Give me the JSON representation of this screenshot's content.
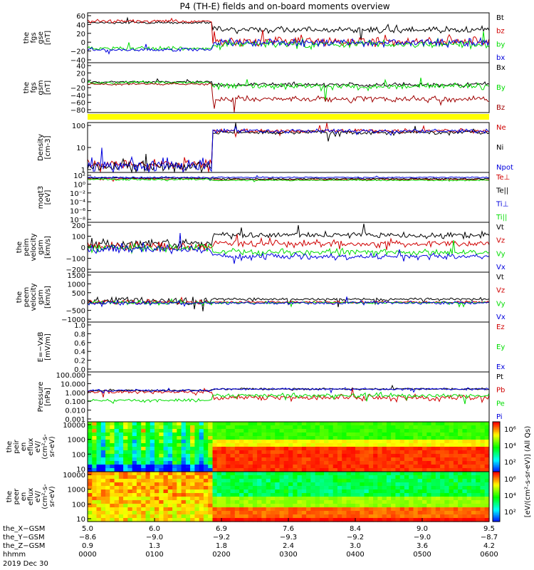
{
  "chart_data": {
    "type": "line",
    "title": "P4 (TH-E) fields and on-board moments overview",
    "panels": [
      {
        "id": "fgs_gse",
        "ylabel": [
          "the",
          "fgs",
          "gse",
          "[nT]"
        ],
        "yticks": [
          "60",
          "40",
          "20",
          "0",
          "−20",
          "−40"
        ],
        "ylim": [
          -40,
          60
        ],
        "series": [
          {
            "name": "Bt",
            "color": "#000000"
          },
          {
            "name": "bz",
            "color": "#d00000"
          },
          {
            "name": "by",
            "color": "#00dd00"
          },
          {
            "name": "bx",
            "color": "#0000dd"
          }
        ]
      },
      {
        "id": "fgs_gsm",
        "ylabel": [
          "the",
          "fgs",
          "gsm",
          "[nT]"
        ],
        "yticks": [
          "40",
          "20",
          "0",
          "−20",
          "−40",
          "−60",
          "−80"
        ],
        "ylim": [
          -90,
          50
        ],
        "series": [
          {
            "name": "Bx",
            "color": "#000000"
          },
          {
            "name": "By",
            "color": "#00dd00"
          },
          {
            "name": "Bz",
            "color": "#a00000"
          }
        ]
      },
      {
        "id": "density",
        "ylabel": [
          "Density",
          "[cm-3]"
        ],
        "yticks": [
          "100",
          "10",
          "1"
        ],
        "ylim": [
          1,
          200
        ],
        "log": true,
        "series": [
          {
            "name": "Ne",
            "color": "#d00000"
          },
          {
            "name": "Ni",
            "color": "#000000"
          },
          {
            "name": "Npot",
            "color": "#0000dd"
          }
        ]
      },
      {
        "id": "temperature",
        "ylabel": [
          "moqt3",
          "[eV]"
        ],
        "yticks": [
          "10²",
          "10⁰",
          "10⁻²",
          "10⁻⁴",
          "10⁻⁶",
          "10⁻⁸"
        ],
        "series": [
          {
            "name": "Te⊥",
            "color": "#d00000"
          },
          {
            "name": "Te||",
            "color": "#000000"
          },
          {
            "name": "Ti⊥",
            "color": "#0000dd"
          },
          {
            "name": "Ti||",
            "color": "#00dd00"
          }
        ]
      },
      {
        "id": "peim_velocity",
        "ylabel": [
          "the",
          "peim",
          "velocity",
          "gsm",
          "[km/s]"
        ],
        "yticks": [
          "200",
          "100",
          "0",
          "−100",
          "−200"
        ],
        "ylim": [
          -200,
          200
        ],
        "series": [
          {
            "name": "Vt",
            "color": "#000000"
          },
          {
            "name": "Vz",
            "color": "#d00000"
          },
          {
            "name": "Vy",
            "color": "#00dd00"
          },
          {
            "name": "Vx",
            "color": "#0000dd"
          }
        ]
      },
      {
        "id": "peem_velocity",
        "ylabel": [
          "the",
          "peem",
          "velocity",
          "gsm",
          "[km/s]"
        ],
        "yticks": [
          "1500",
          "1000",
          "500",
          "0",
          "−500",
          "−1000"
        ],
        "ylim": [
          -1000,
          1500
        ],
        "series": [
          {
            "name": "Vt",
            "color": "#000000"
          },
          {
            "name": "Vz",
            "color": "#d00000"
          },
          {
            "name": "Vy",
            "color": "#00dd00"
          },
          {
            "name": "Vx",
            "color": "#0000dd"
          }
        ]
      },
      {
        "id": "efield",
        "ylabel": [
          "E=−VxB",
          "[mV/m]"
        ],
        "yticks": [
          "1.0",
          "0.8",
          "0.6",
          "0.4",
          "0.2",
          "0.0"
        ],
        "ylim": [
          0,
          1
        ],
        "series": [
          {
            "name": "Ez",
            "color": "#d00000"
          },
          {
            "name": "Ey",
            "color": "#00dd00"
          },
          {
            "name": "Ex",
            "color": "#0000dd"
          }
        ]
      },
      {
        "id": "pressure",
        "ylabel": [
          "Pressure",
          "[nPa]"
        ],
        "yticks": [
          "100.000",
          "10.000",
          "1.000",
          "0.100",
          "0.010",
          "0.001"
        ],
        "ylim": [
          0.001,
          100
        ],
        "log": true,
        "series": [
          {
            "name": "Pt",
            "color": "#000000"
          },
          {
            "name": "Pb",
            "color": "#d00000"
          },
          {
            "name": "Pe",
            "color": "#00dd00"
          },
          {
            "name": "Pi",
            "color": "#0000dd"
          }
        ]
      },
      {
        "id": "peir_eflux",
        "ylabel": [
          "the",
          "peir",
          "en",
          "eflux",
          "eV/",
          "(cm²-s-",
          "sr-eV)"
        ],
        "yticks": [
          "10000",
          "1000",
          "100",
          "10"
        ]
      },
      {
        "id": "peer_eflux",
        "ylabel": [
          "the",
          "peer",
          "en",
          "eflux",
          "eV/",
          "(cm²-s-",
          "sr-eV)"
        ],
        "yticks": [
          "10000",
          "1000",
          "100",
          "10"
        ]
      }
    ],
    "colorbar": {
      "label": "[eV/(cm²-s-sr-eV)] (All Qs)",
      "upper_ticks": [
        "10⁶",
        "10⁴",
        "10²"
      ],
      "lower_ticks": [
        "10⁶",
        "10⁴",
        "10²"
      ]
    },
    "x_axis": {
      "rows": [
        {
          "label": "the_X−GSM",
          "values": [
            "5.0",
            "6.0",
            "6.9",
            "7.6",
            "8.4",
            "9.0",
            "9.5"
          ]
        },
        {
          "label": "the_Y−GSM",
          "values": [
            "−8.6",
            "−9.0",
            "−9.2",
            "−9.3",
            "−9.2",
            "−9.0",
            "−8.7"
          ]
        },
        {
          "label": "the_Z−GSM",
          "values": [
            "0.9",
            "1.3",
            "1.8",
            "2.4",
            "3.0",
            "3.6",
            "4.2"
          ]
        },
        {
          "label": "hhmm",
          "values": [
            "0000",
            "0100",
            "0200",
            "0300",
            "0400",
            "0500",
            "0600"
          ]
        }
      ],
      "date": "2019 Dec 30",
      "xlim": [
        "0000",
        "0600"
      ]
    }
  }
}
